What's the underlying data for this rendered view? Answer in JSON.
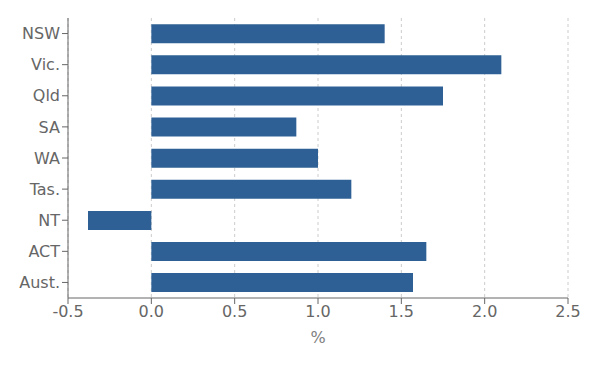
{
  "chart_data": {
    "type": "bar",
    "orientation": "horizontal",
    "categories": [
      "NSW",
      "Vic.",
      "Qld",
      "SA",
      "WA",
      "Tas.",
      "NT",
      "ACT",
      "Aust."
    ],
    "values": [
      1.4,
      2.1,
      1.75,
      0.87,
      1.0,
      1.2,
      -0.38,
      1.65,
      1.57
    ],
    "color": "#2E6096",
    "xlabel": "%",
    "xlim": [
      -0.5,
      2.5
    ],
    "xticks": [
      -0.5,
      {
        "value": 0,
        "label": "0.0"
      },
      0.5,
      {
        "value": 1,
        "label": "1.0"
      },
      1.5,
      {
        "value": 2,
        "label": "2.0"
      },
      2.5
    ],
    "grid": true
  }
}
